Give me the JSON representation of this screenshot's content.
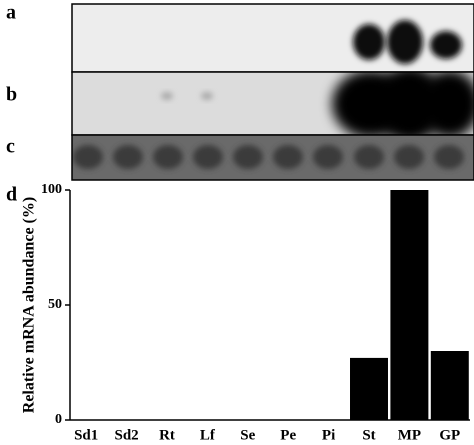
{
  "panel_labels": [
    "a",
    "b",
    "c",
    "d"
  ],
  "chart_data": {
    "type": "bar",
    "ylabel": "Relative mRNA abundance (%)",
    "categories": [
      "Sd1",
      "Sd2",
      "Rt",
      "Lf",
      "Se",
      "Pe",
      "Pi",
      "St",
      "MP",
      "GP"
    ],
    "values": [
      0,
      0,
      0,
      0,
      0,
      0,
      0,
      27,
      100,
      30
    ],
    "color": "#000000",
    "ylim": [
      0,
      100
    ],
    "yticks": [
      0,
      50,
      100
    ]
  }
}
